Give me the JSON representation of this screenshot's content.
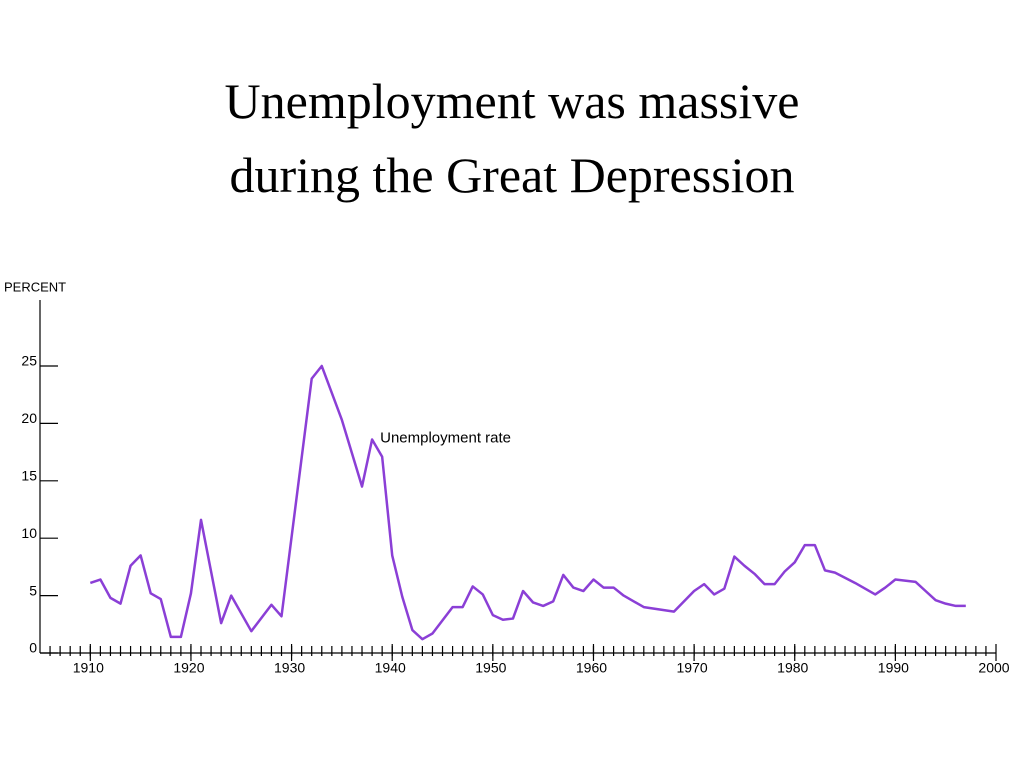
{
  "chart_data": {
    "type": "line",
    "title": [
      "Unemployment was massive",
      "during the Great Depression"
    ],
    "ylabel": "PERCENT",
    "annotation": {
      "text": "Unemployment rate",
      "x": 1938.8,
      "y": 18.7
    },
    "x": [
      1910,
      1911,
      1912,
      1913,
      1914,
      1915,
      1916,
      1917,
      1918,
      1919,
      1920,
      1921,
      1923,
      1924,
      1926,
      1928,
      1929,
      1932,
      1933,
      1935,
      1937,
      1938,
      1939,
      1940,
      1941,
      1942,
      1943,
      1944,
      1946,
      1947,
      1948,
      1949,
      1950,
      1951,
      1952,
      1953,
      1954,
      1955,
      1956,
      1957,
      1958,
      1959,
      1960,
      1961,
      1962,
      1963,
      1965,
      1968,
      1970,
      1971,
      1972,
      1973,
      1974,
      1975,
      1976,
      1977,
      1978,
      1979,
      1980,
      1981,
      1982,
      1983,
      1984,
      1986,
      1988,
      1989,
      1990,
      1992,
      1993,
      1994,
      1995,
      1996,
      1997
    ],
    "series": [
      {
        "name": "Unemployment rate",
        "color": "#8b3fd6",
        "values": [
          6.1,
          6.4,
          4.8,
          4.3,
          7.6,
          8.5,
          5.2,
          4.7,
          1.4,
          1.4,
          5.2,
          11.6,
          2.6,
          5.0,
          1.9,
          4.2,
          3.2,
          23.9,
          25.0,
          20.3,
          14.5,
          18.6,
          17.1,
          8.5,
          4.9,
          2.0,
          1.2,
          1.7,
          4.0,
          4.0,
          5.8,
          5.1,
          3.3,
          2.9,
          3.0,
          5.4,
          4.4,
          4.1,
          4.5,
          6.8,
          5.7,
          5.4,
          6.4,
          5.7,
          5.7,
          5.0,
          4.0,
          3.6,
          5.4,
          6.0,
          5.1,
          5.6,
          8.4,
          7.6,
          6.9,
          6.0,
          6.0,
          7.1,
          7.9,
          9.4,
          9.4,
          7.2,
          7.0,
          6.1,
          5.1,
          5.7,
          6.4,
          6.2,
          5.4,
          4.6,
          4.3,
          4.1,
          4.1
        ]
      }
    ],
    "xlim": [
      1905,
      2000
    ],
    "ylim": [
      0,
      30.75
    ],
    "xticks": [
      1910,
      1920,
      1930,
      1940,
      1950,
      1960,
      1970,
      1980,
      1990,
      2000
    ],
    "xminorticks": [
      1906,
      1907,
      1908,
      1909,
      1910,
      1911,
      1912,
      1913,
      1914,
      1915,
      1916,
      1917,
      1918,
      1919,
      1920,
      1921,
      1922,
      1923,
      1924,
      1925,
      1926,
      1927,
      1928,
      1929,
      1930,
      1931,
      1932,
      1933,
      1934,
      1935,
      1936,
      1937,
      1938,
      1939,
      1940,
      1941,
      1942,
      1943,
      1944,
      1945,
      1946,
      1947,
      1948,
      1949,
      1950,
      1951,
      1952,
      1953,
      1954,
      1955,
      1956,
      1957,
      1958,
      1959,
      1960,
      1961,
      1962,
      1963,
      1964,
      1965,
      1966,
      1967,
      1968,
      1969,
      1970,
      1971,
      1972,
      1973,
      1974,
      1975,
      1976,
      1977,
      1978,
      1979,
      1980,
      1981,
      1982,
      1983,
      1984,
      1985,
      1986,
      1987,
      1988,
      1989,
      1990,
      1991,
      1992,
      1993,
      1994,
      1995,
      1996,
      1997,
      1998,
      1999
    ],
    "yticks": [
      0,
      5,
      10,
      15,
      20,
      25
    ]
  }
}
